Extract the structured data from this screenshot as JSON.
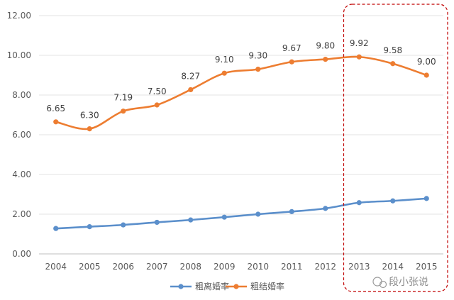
{
  "chart_data": {
    "type": "line",
    "title": "",
    "xlabel": "",
    "ylabel": "",
    "categories": [
      "2004",
      "2005",
      "2006",
      "2007",
      "2008",
      "2009",
      "2010",
      "2011",
      "2012",
      "2013",
      "2014",
      "2015"
    ],
    "ylim": [
      0,
      12
    ],
    "yticks": [
      "0.00",
      "2.00",
      "4.00",
      "6.00",
      "8.00",
      "10.00",
      "12.00"
    ],
    "grid": "horizontal",
    "legend_position": "bottom",
    "series": [
      {
        "name": "粗离婚率",
        "color": "#5b8fcb",
        "values": [
          1.28,
          1.37,
          1.46,
          1.59,
          1.71,
          1.85,
          2.0,
          2.13,
          2.29,
          2.58,
          2.67,
          2.79
        ],
        "show_labels": false
      },
      {
        "name": "粗结婚率",
        "color": "#ed7d31",
        "values": [
          6.65,
          6.3,
          7.19,
          7.5,
          8.27,
          9.1,
          9.3,
          9.67,
          9.8,
          9.92,
          9.58,
          9.0
        ],
        "labels": [
          "6.65",
          "6.30",
          "7.19",
          "7.50",
          "8.27",
          "9.10",
          "9.30",
          "9.67",
          "9.80",
          "9.92",
          "9.58",
          "9.00"
        ],
        "show_labels": true
      }
    ],
    "annotations": [
      {
        "type": "dashed-box",
        "color": "#c00000",
        "covers": [
          "2013",
          "2014",
          "2015"
        ]
      }
    ]
  },
  "watermark": {
    "text": "段小张说",
    "icon": "wechat-icon"
  }
}
